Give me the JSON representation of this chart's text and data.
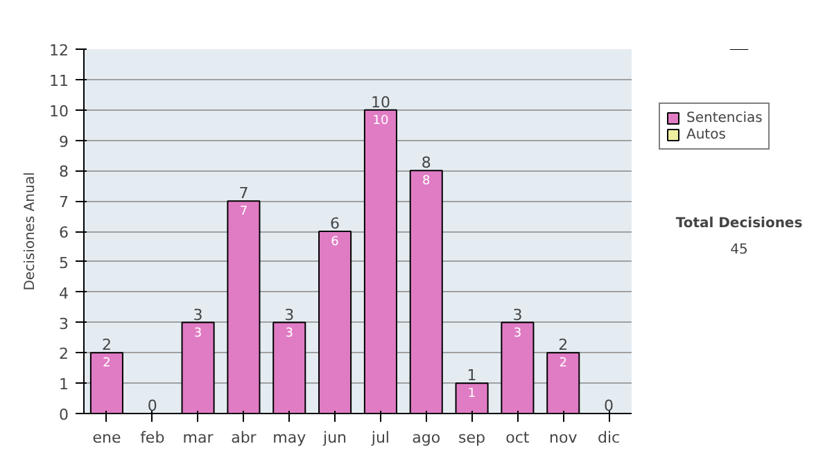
{
  "chart_data": {
    "type": "bar",
    "ylabel": "Decisiones Anual",
    "categories": [
      "ene",
      "feb",
      "mar",
      "abr",
      "may",
      "jun",
      "jul",
      "ago",
      "sep",
      "oct",
      "nov",
      "dic"
    ],
    "series": [
      {
        "name": "Sentencias",
        "color": "#e07cc4",
        "values": [
          2,
          0,
          3,
          7,
          3,
          6,
          10,
          8,
          1,
          3,
          2,
          0
        ],
        "value_labels": [
          "2",
          null,
          "3",
          "7",
          "3",
          "6",
          "10",
          "8",
          "1",
          "3",
          "2",
          null
        ]
      },
      {
        "name": "Autos",
        "color": "#eef0a0",
        "values": [
          0,
          0,
          0,
          0,
          0,
          0,
          0,
          0,
          0,
          0,
          0,
          0
        ]
      }
    ],
    "stacked": true,
    "totals": [
      "2",
      "0",
      "3",
      "7",
      "3",
      "6",
      "10",
      "8",
      "1",
      "3",
      "2",
      "0"
    ],
    "ylim": [
      0,
      12
    ],
    "yticks": [
      0,
      1,
      2,
      3,
      4,
      5,
      6,
      7,
      8,
      9,
      10,
      11,
      12
    ],
    "grid": "y",
    "legend": "right",
    "annotations": [
      "Total Decisiones",
      "45"
    ]
  }
}
